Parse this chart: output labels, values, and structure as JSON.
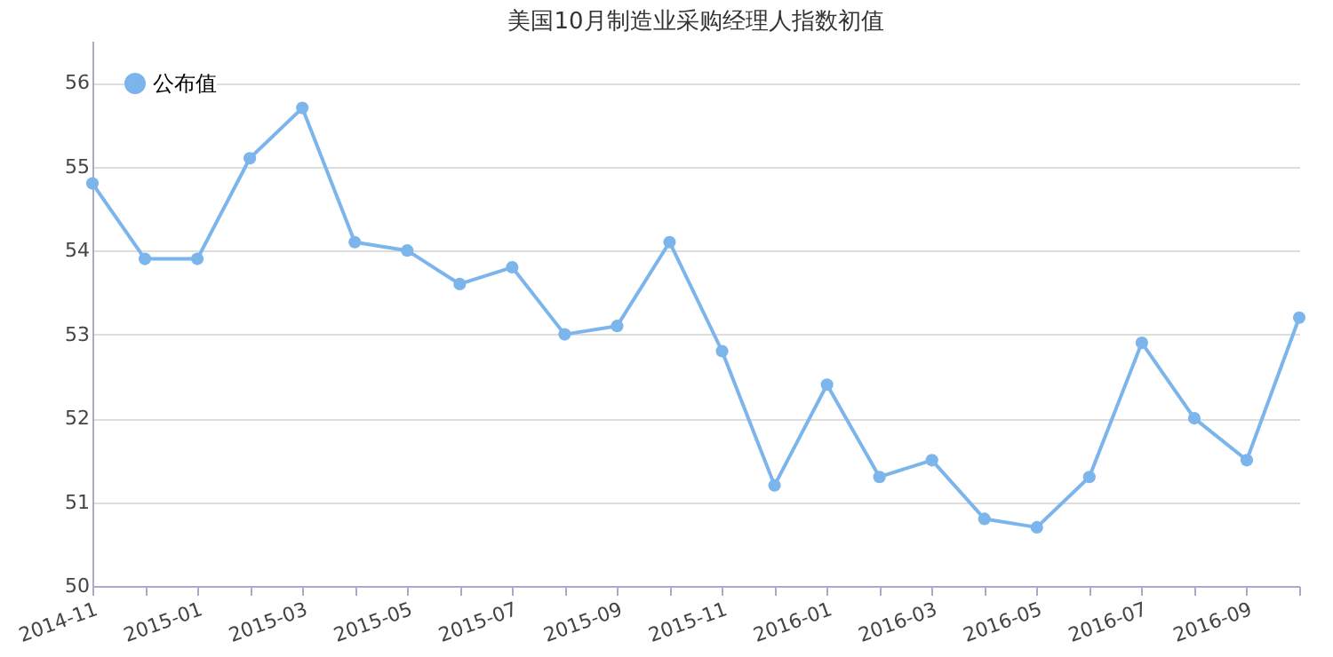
{
  "chart_data": {
    "type": "line",
    "title": "美国10月制造业采购经理人指数初值",
    "categories": [
      "2014-11",
      null,
      "2015-01",
      null,
      "2015-03",
      null,
      "2015-05",
      null,
      "2015-07",
      null,
      "2015-09",
      null,
      "2015-11",
      null,
      "2016-01",
      null,
      "2016-03",
      null,
      "2016-05",
      null,
      "2016-07",
      null,
      "2016-09",
      null
    ],
    "series": [
      {
        "name": "公布值",
        "color": "#7cb5ec",
        "values": [
          54.8,
          53.9,
          53.9,
          55.1,
          55.7,
          54.1,
          54.0,
          53.6,
          53.8,
          53.0,
          53.1,
          54.1,
          52.8,
          51.2,
          52.4,
          51.3,
          51.5,
          50.8,
          50.7,
          51.3,
          52.9,
          52.0,
          51.5,
          53.2
        ]
      }
    ],
    "ylim": [
      50,
      56.5
    ],
    "yticks": [
      50,
      51,
      52,
      53,
      54,
      55,
      56
    ],
    "grid": "y",
    "legend": "top left",
    "marker": "circle",
    "line_style": "solid"
  }
}
